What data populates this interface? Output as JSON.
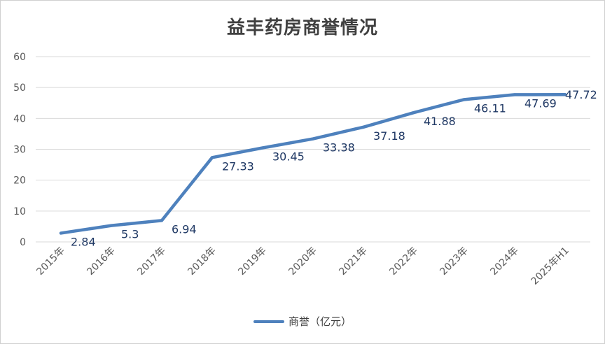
{
  "chart_data": {
    "type": "line",
    "title": "益丰药房商誉情况",
    "categories": [
      "2015年",
      "2016年",
      "2017年",
      "2018年",
      "2019年",
      "2020年",
      "2021年",
      "2022年",
      "2023年",
      "2024年",
      "2025年H1"
    ],
    "series": [
      {
        "name": "商誉（亿元）",
        "values": [
          2.84,
          5.3,
          6.94,
          27.33,
          30.45,
          33.38,
          37.18,
          41.88,
          46.11,
          47.69,
          47.72
        ],
        "labels": [
          "2.84",
          "5.3",
          "6.94",
          "27.33",
          "30.45",
          "33.38",
          "37.18",
          "41.88",
          "46.11",
          "47.69",
          "47.72"
        ]
      }
    ],
    "y_ticks": [
      "0",
      "10",
      "20",
      "30",
      "40",
      "50",
      "60"
    ],
    "ylim": [
      0,
      60
    ],
    "grid": true,
    "legend": "bottom",
    "colors": {
      "line": "#4e81bd",
      "label": "#1f3864",
      "axis_text": "#595959",
      "grid": "#d9d9d9"
    }
  }
}
